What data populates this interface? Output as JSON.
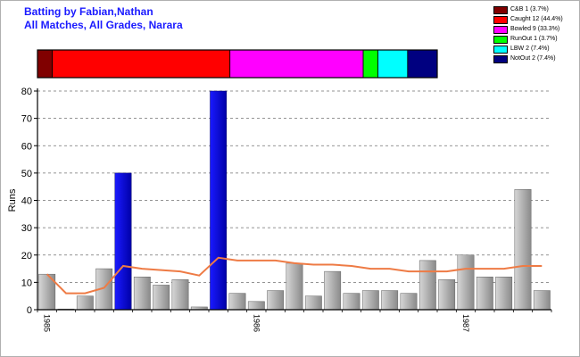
{
  "title_lines": [
    "Batting by Fabian,Nathan",
    "All Matches, All Grades, Narara"
  ],
  "legend": [
    {
      "label": "C&B 1 (3.7%)",
      "color": "#800000"
    },
    {
      "label": "Caught 12 (44.4%)",
      "color": "#ff0000"
    },
    {
      "label": "Bowled 9 (33.3%)",
      "color": "#ff00ff"
    },
    {
      "label": "RunOut 1 (3.7%)",
      "color": "#00ff00"
    },
    {
      "label": "LBW 2 (7.4%)",
      "color": "#00ffff"
    },
    {
      "label": "NotOut 2 (7.4%)",
      "color": "#000080"
    }
  ],
  "chart_data": [
    {
      "type": "bar",
      "title": "",
      "orientation": "horizontal-stacked",
      "series": [
        {
          "name": "C&B",
          "values": [
            1
          ],
          "color": "#800000"
        },
        {
          "name": "Caught",
          "values": [
            12
          ],
          "color": "#ff0000"
        },
        {
          "name": "Bowled",
          "values": [
            9
          ],
          "color": "#ff00ff"
        },
        {
          "name": "RunOut",
          "values": [
            1
          ],
          "color": "#00ff00"
        },
        {
          "name": "LBW",
          "values": [
            2
          ],
          "color": "#00ffff"
        },
        {
          "name": "NotOut",
          "values": [
            2
          ],
          "color": "#000080"
        }
      ]
    },
    {
      "type": "bar",
      "ylabel": "Runs",
      "xlabel": "",
      "ylim": [
        0,
        80
      ],
      "yticks": [
        0,
        10,
        20,
        30,
        40,
        50,
        60,
        70,
        80
      ],
      "grid": "horizontal dashed",
      "x_tick_labels": [
        {
          "label": "1985",
          "index": 0
        },
        {
          "label": "1986",
          "index": 11
        },
        {
          "label": "1987",
          "index": 22
        }
      ],
      "values": [
        13,
        0,
        5,
        15,
        50,
        12,
        9,
        11,
        1,
        80,
        6,
        3,
        7,
        17,
        5,
        14,
        6,
        7,
        7,
        6,
        18,
        11,
        20,
        12,
        12,
        44,
        7
      ],
      "not_out": [
        false,
        false,
        false,
        false,
        true,
        false,
        false,
        false,
        false,
        true,
        false,
        false,
        false,
        false,
        false,
        false,
        false,
        false,
        false,
        false,
        false,
        false,
        false,
        false,
        false,
        false,
        false
      ],
      "colors": {
        "out": "#a8a8a8",
        "not_out": "#0000cc",
        "average_line": "#ee7b45"
      },
      "average_line": [
        13,
        6,
        6,
        8,
        16,
        15,
        14.5,
        14,
        12.5,
        19,
        18,
        18,
        18,
        17,
        16.5,
        16.5,
        16,
        15,
        15,
        14,
        14,
        14,
        15,
        15,
        15,
        16,
        16
      ]
    }
  ]
}
